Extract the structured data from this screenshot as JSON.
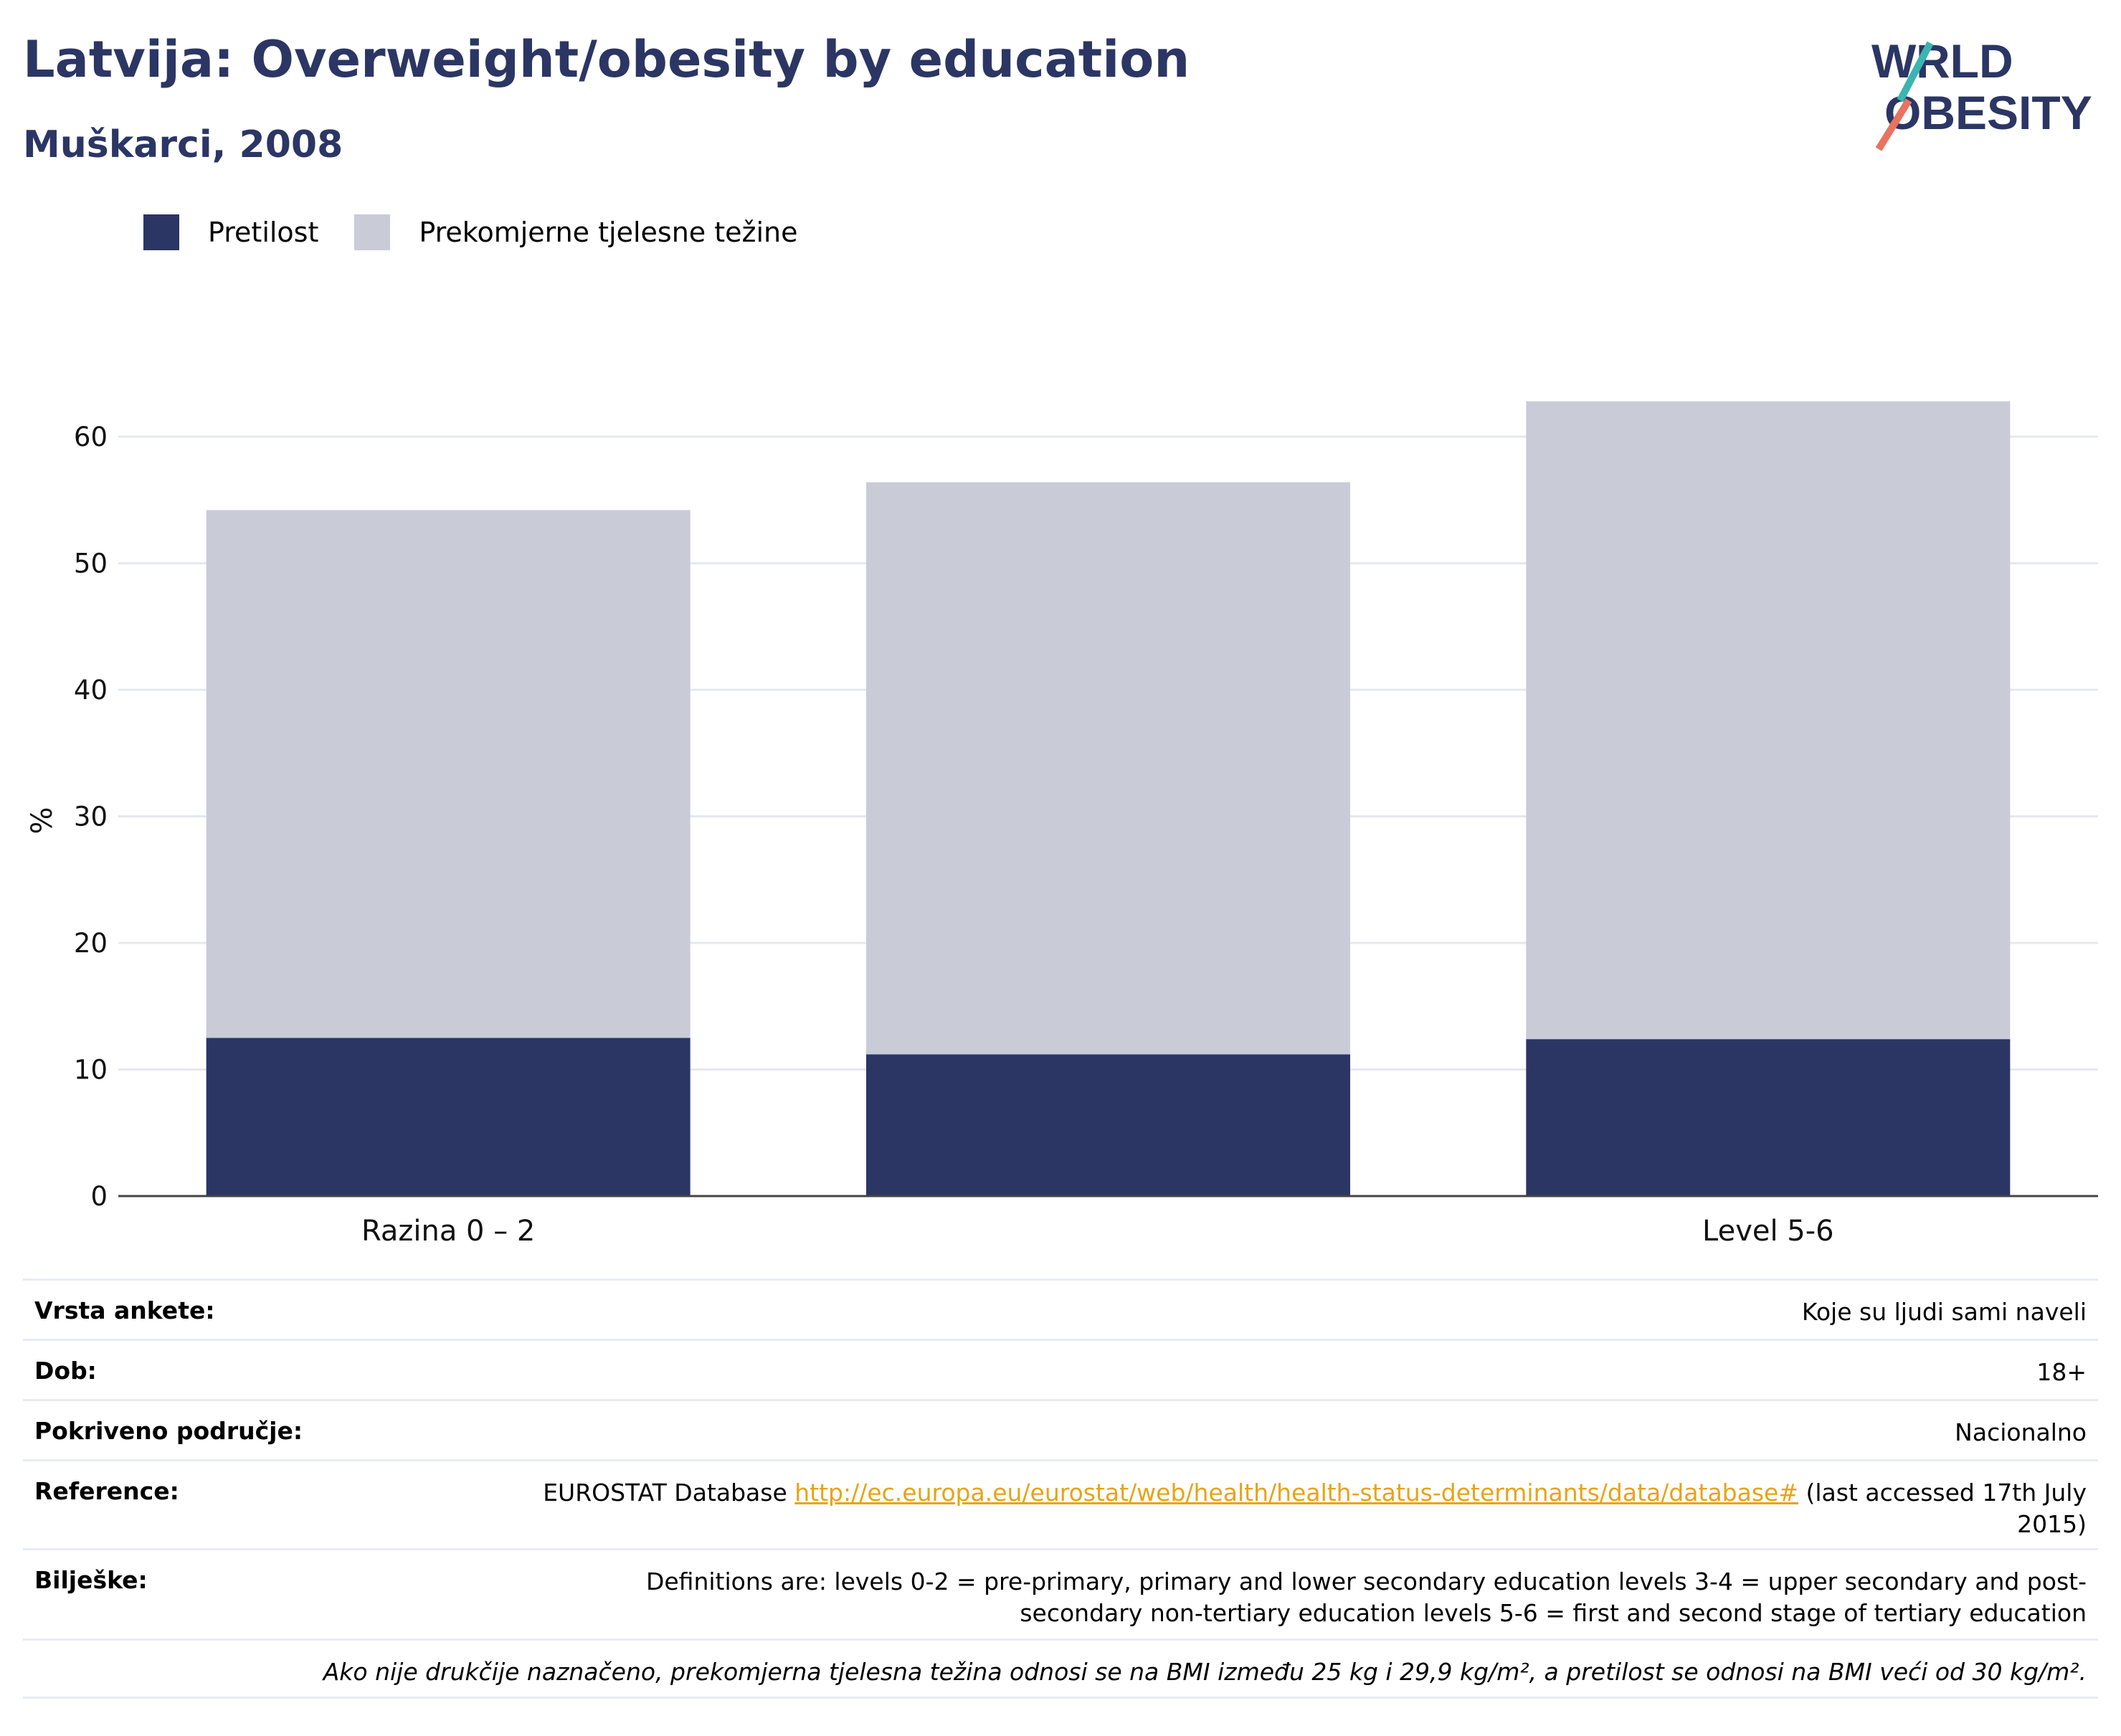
{
  "header": {
    "title": "Latvija: Overweight/obesity by education",
    "subtitle": "Muškarci, 2008",
    "logo_text": "WORLD OBESITY"
  },
  "legend": {
    "items": [
      {
        "label": "Pretilost",
        "color": "#2b3664"
      },
      {
        "label": "Prekomjerne tjelesne težine",
        "color": "#c9ccd7"
      }
    ]
  },
  "chart_data": {
    "type": "bar",
    "stacked": true,
    "categories": [
      "Razina 0 – 2",
      "",
      "Level 5-6"
    ],
    "series": [
      {
        "name": "Pretilost",
        "values": [
          12.5,
          11.2,
          12.4
        ],
        "color": "#2b3664"
      },
      {
        "name": "Prekomjerne tjelesne težine",
        "values": [
          41.7,
          45.2,
          50.4
        ],
        "color": "#c9ccd7"
      }
    ],
    "title": "",
    "xlabel": "",
    "ylabel": "%",
    "ylim": [
      0,
      65
    ],
    "yticks": [
      0,
      10,
      20,
      30,
      40,
      50,
      60
    ],
    "grid": true,
    "legend_position": "top-left"
  },
  "info": {
    "rows": [
      {
        "label": "Vrsta ankete:",
        "value": "Koje su ljudi sami naveli"
      },
      {
        "label": "Dob:",
        "value": "18+"
      },
      {
        "label": "Pokriveno područje:",
        "value": "Nacionalno"
      }
    ],
    "reference": {
      "label": "Reference:",
      "prefix": "EUROSTAT Database ",
      "link": "http://ec.europa.eu/eurostat/web/health/health-status-determinants/data/database#",
      "suffix": " (last accessed 17th July 2015)"
    },
    "notes": {
      "label": "Bilješke:",
      "value": "Definitions are: levels 0-2 = pre-primary, primary and lower secondary education levels 3-4 = upper secondary and post-secondary non-tertiary education levels 5-6 = first and second stage of tertiary education"
    },
    "footnote": "Ako nije drukčije naznačeno, prekomjerna tjelesna težina odnosi se na BMI između 25 kg i 29,9 kg/m², a pretilost se odnosi na BMI veći od 30 kg/m²."
  }
}
